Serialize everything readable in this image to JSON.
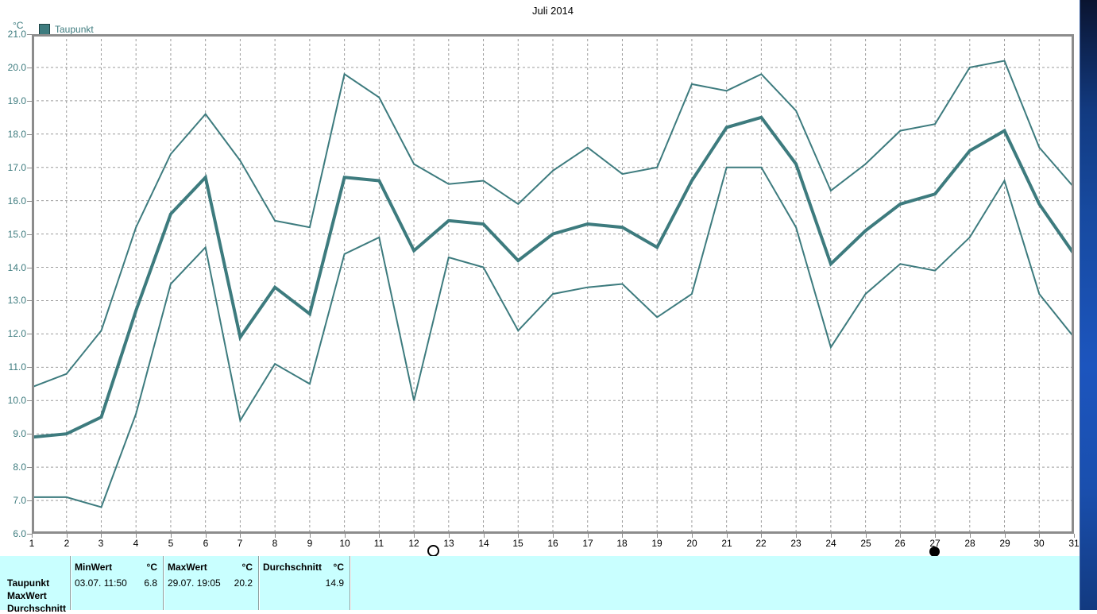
{
  "title": "Juli 2014",
  "y_axis_unit_label": "°C",
  "legend": {
    "label": "Taupunkt"
  },
  "colors": {
    "line": "#3D7B7E",
    "grid": "#9C9C9C",
    "axis_border": "#8C8C8C",
    "tick_label_teal": "#3E7C7E",
    "table_background": "#C9FFFF",
    "moon_marker": "#000000"
  },
  "chart_data": {
    "type": "line",
    "title": "Juli 2014",
    "ylabel": "°C",
    "ylim": [
      6.0,
      21.0
    ],
    "ytick_labels": [
      "21.0",
      "20.0",
      "19.0",
      "18.0",
      "17.0",
      "16.0",
      "15.0",
      "14.0",
      "13.0",
      "12.0",
      "11.0",
      "10.0",
      "9.0",
      "8.0",
      "7.0",
      "6.0"
    ],
    "xtick_labels": [
      "1",
      "2",
      "3",
      "4",
      "5",
      "6",
      "7",
      "8",
      "9",
      "10",
      "11",
      "12",
      "13",
      "14",
      "15",
      "16",
      "17",
      "18",
      "19",
      "20",
      "21",
      "22",
      "23",
      "24",
      "25",
      "26",
      "27",
      "28",
      "29",
      "30",
      "31"
    ],
    "grid": "dashed, both axes, 1 unit spacing",
    "legend_position": "top-left",
    "legend_entries": [
      "Taupunkt"
    ],
    "series": [
      {
        "role": "daily-maximum",
        "stroke_width": 2,
        "values": [
          10.4,
          10.8,
          12.1,
          15.2,
          17.4,
          18.6,
          17.2,
          15.4,
          15.2,
          19.8,
          19.1,
          17.1,
          16.5,
          16.6,
          15.9,
          16.9,
          17.6,
          16.8,
          17.0,
          19.5,
          19.3,
          19.8,
          18.7,
          16.3,
          17.1,
          18.1,
          18.3,
          20.0,
          20.2,
          17.6,
          16.4
        ]
      },
      {
        "role": "daily-mean",
        "stroke_width": 4,
        "values": [
          8.9,
          9.0,
          9.5,
          12.7,
          15.6,
          16.7,
          11.9,
          13.4,
          12.6,
          16.7,
          16.6,
          14.5,
          15.4,
          15.3,
          14.2,
          15.0,
          15.3,
          15.2,
          14.6,
          16.6,
          18.2,
          18.5,
          17.1,
          14.1,
          15.1,
          15.9,
          16.2,
          17.5,
          18.1,
          15.9,
          14.4
        ]
      },
      {
        "role": "daily-minimum",
        "stroke_width": 2,
        "values": [
          7.1,
          7.1,
          6.8,
          9.6,
          13.5,
          14.6,
          9.4,
          11.1,
          10.5,
          14.4,
          14.9,
          10.0,
          14.3,
          14.0,
          12.1,
          13.2,
          13.4,
          13.5,
          12.5,
          13.2,
          17.0,
          17.0,
          15.2,
          11.6,
          13.2,
          14.1,
          13.9,
          14.9,
          16.6,
          13.2,
          11.9
        ]
      }
    ],
    "moon_phase_markers": [
      {
        "phase": "full-moon",
        "day": 12.55
      },
      {
        "phase": "new-moon",
        "day": 27
      }
    ]
  },
  "stats_table": {
    "columns": [
      {
        "header": "MinWert",
        "unit": "°C"
      },
      {
        "header": "MaxWert",
        "unit": "°C"
      },
      {
        "header": "Durchschnitt",
        "unit": "°C"
      }
    ],
    "rows": [
      {
        "label": "Taupunkt",
        "minwert_datetime": "03.07.  11:50",
        "minwert_value": "6.8",
        "maxwert_datetime": "29.07.  19:05",
        "maxwert_value": "20.2",
        "durchschnitt_value": "14.9"
      },
      {
        "label": "MaxWert"
      },
      {
        "label": "Durchschnitt"
      }
    ]
  }
}
